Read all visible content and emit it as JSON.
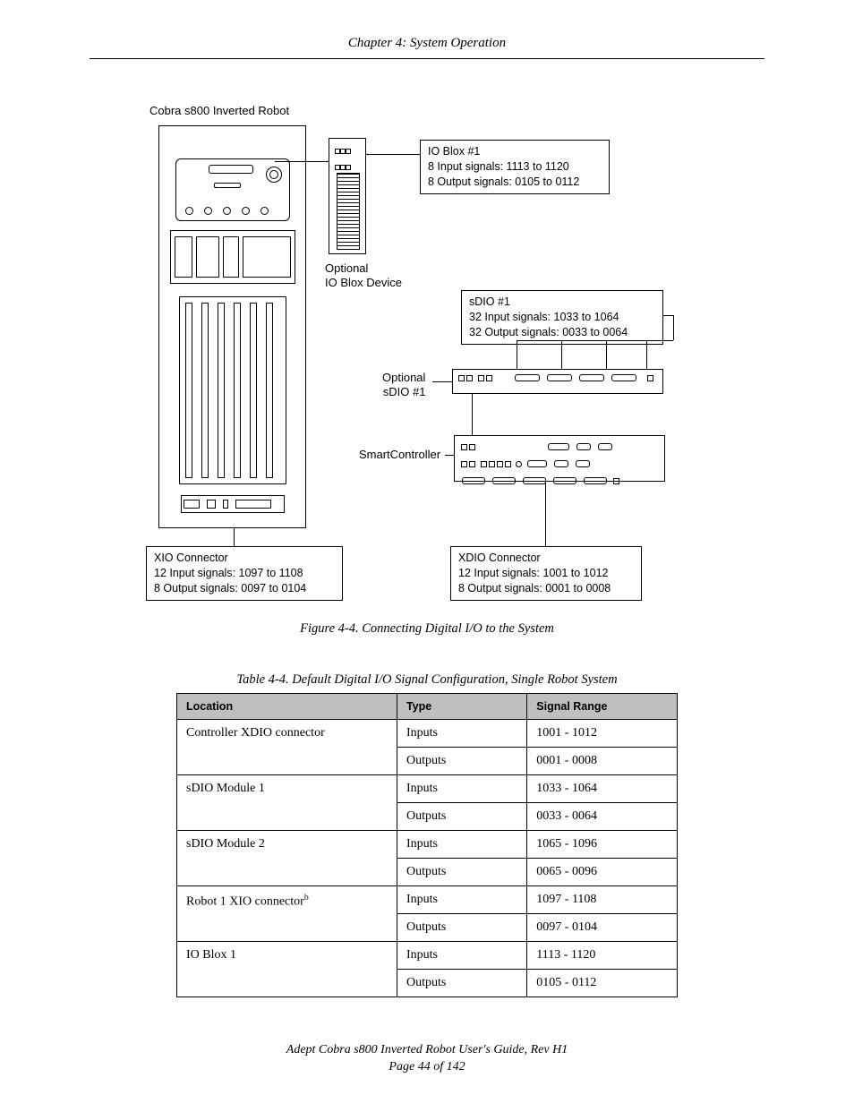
{
  "header": {
    "chapter": "Chapter 4: System Operation"
  },
  "diagram": {
    "robot_label": "Cobra s800 Inverted Robot",
    "ioblox_dev_label": "Optional\nIO Blox Device",
    "ioblox_box": {
      "title": "IO Blox #1",
      "in": "8 Input signals: 1113 to 1120",
      "out": "8 Output signals: 0105 to 0112"
    },
    "sdio_label": "Optional\nsDIO #1",
    "sdio_box": {
      "title": "sDIO #1",
      "in": "32 Input signals: 1033 to 1064",
      "out": "32 Output signals: 0033 to 0064"
    },
    "smart_label": "SmartController",
    "xio_box": {
      "title": "XIO Connector",
      "in": "12 Input signals: 1097 to 1108",
      "out": "8 Output signals: 0097 to 0104"
    },
    "xdio_box": {
      "title": "XDIO Connector",
      "in": "12 Input signals: 1001 to 1012",
      "out": "8 Output signals: 0001 to 0008"
    }
  },
  "figure_caption": "Figure 4-4. Connecting Digital I/O to the System",
  "table_caption": "Table 4-4. Default Digital I/O Signal Configuration, Single Robot System",
  "table": {
    "columns": [
      "Location",
      "Type",
      "Signal Range"
    ],
    "col_widths": [
      "44%",
      "26%",
      "30%"
    ],
    "header_bg": "#bfbfbf",
    "rows": [
      {
        "location": "Controller XDIO connector",
        "rowspan": 2,
        "type": "Inputs",
        "range": "1001 - 1012"
      },
      {
        "type": "Outputs",
        "range": "0001 - 0008"
      },
      {
        "location": "sDIO Module 1",
        "rowspan": 2,
        "type": "Inputs",
        "range": "1033 - 1064"
      },
      {
        "type": "Outputs",
        "range": "0033 - 0064"
      },
      {
        "location": "sDIO Module 2",
        "rowspan": 2,
        "type": "Inputs",
        "range": "1065 - 1096"
      },
      {
        "type": "Outputs",
        "range": "0065 - 0096"
      },
      {
        "location_html": "Robot 1 XIO connector<sup>b</sup>",
        "rowspan": 2,
        "type": "Inputs",
        "range": "1097 - 1108"
      },
      {
        "type": "Outputs",
        "range": "0097 - 0104"
      },
      {
        "location": "IO Blox 1",
        "rowspan": 2,
        "type": "Inputs",
        "range": "1113 - 1120"
      },
      {
        "type": "Outputs",
        "range": "0105 - 0112"
      }
    ]
  },
  "footer": {
    "line1": "Adept Cobra s800 Inverted Robot User's Guide, Rev H1",
    "line2": "Page 44 of 142"
  },
  "colors": {
    "text": "#000000",
    "bg": "#ffffff",
    "table_header": "#bfbfbf",
    "border": "#000000"
  }
}
